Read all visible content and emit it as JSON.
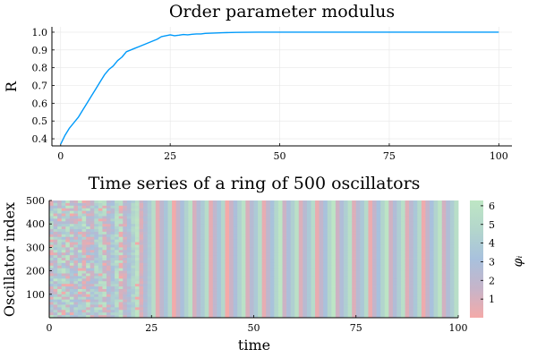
{
  "chart_data": [
    {
      "type": "line",
      "title": "Order parameter modulus",
      "xlabel": "",
      "ylabel": "R",
      "xlim": [
        -2,
        103
      ],
      "ylim": [
        0.36,
        1.03
      ],
      "xticks": [
        0,
        25,
        50,
        75,
        100
      ],
      "yticks": [
        0.4,
        0.5,
        0.6,
        0.7,
        0.8,
        0.9,
        1.0
      ],
      "xtick_labels": [
        "0",
        "25",
        "50",
        "75",
        "100"
      ],
      "ytick_labels": [
        "0.4",
        "0.5",
        "0.6",
        "0.7",
        "0.8",
        "0.9",
        "1.0"
      ],
      "grid": true,
      "line_color": "#009AFA",
      "x": [
        0,
        1,
        2,
        3,
        4,
        5,
        6,
        7,
        8,
        9,
        10,
        11,
        12,
        13,
        14,
        15,
        16,
        17,
        18,
        19,
        20,
        21,
        22,
        23,
        24,
        25,
        26,
        27,
        28,
        29,
        30,
        31,
        32,
        33,
        35,
        37,
        40,
        45,
        50,
        60,
        70,
        80,
        90,
        100
      ],
      "y": [
        0.37,
        0.42,
        0.46,
        0.49,
        0.52,
        0.56,
        0.6,
        0.64,
        0.68,
        0.72,
        0.76,
        0.79,
        0.81,
        0.84,
        0.86,
        0.89,
        0.9,
        0.91,
        0.92,
        0.93,
        0.94,
        0.95,
        0.96,
        0.975,
        0.98,
        0.985,
        0.98,
        0.983,
        0.987,
        0.985,
        0.988,
        0.99,
        0.99,
        0.993,
        0.995,
        0.997,
        0.999,
        1.0,
        1.0,
        1.0,
        1.0,
        1.0,
        1.0,
        1.0
      ]
    },
    {
      "type": "heatmap",
      "title": "Time series of a ring of 500 oscillators",
      "xlabel": "time",
      "ylabel": "Oscillator index",
      "xlim": [
        0,
        100
      ],
      "ylim": [
        0,
        500
      ],
      "xticks": [
        0,
        25,
        50,
        75,
        100
      ],
      "yticks": [
        100,
        200,
        300,
        400,
        500
      ],
      "xtick_labels": [
        "0",
        "25",
        "50",
        "75",
        "100"
      ],
      "ytick_labels": [
        "100",
        "200",
        "300",
        "400",
        "500"
      ],
      "colorbar_label": "φᵢ",
      "colorbar_range": [
        0,
        6.2832
      ],
      "colorbar_ticks": [
        1,
        2,
        3,
        4,
        5,
        6
      ],
      "colorbar_tick_labels": [
        "1",
        "2",
        "3",
        "4",
        "5",
        "6"
      ],
      "colormap": [
        "#F4AAA9",
        "#C6B4C9",
        "#A8C1DD",
        "#B3D6CC",
        "#BEE6C4"
      ],
      "synchronization_time": 25,
      "phase_period": 4.35
    }
  ]
}
